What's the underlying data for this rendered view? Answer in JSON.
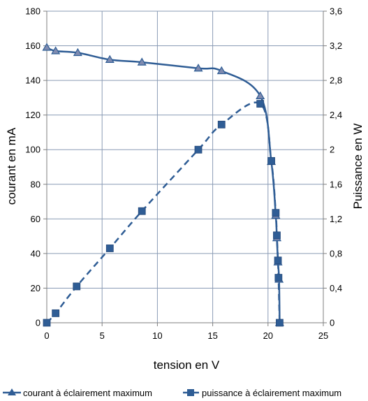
{
  "chart_data": {
    "type": "scatter",
    "xlabel": "tension en V",
    "ylabel": "courant en mA",
    "y2label": "Puissance en W",
    "xlim": [
      0,
      25
    ],
    "ylim": [
      0,
      180
    ],
    "y2lim": [
      0,
      3.6
    ],
    "xticks": [
      0,
      5,
      10,
      15,
      20,
      25
    ],
    "yticks": [
      0,
      20,
      40,
      60,
      80,
      100,
      120,
      140,
      160,
      180
    ],
    "y2ticks": [
      "0",
      "0,4",
      "0,8",
      "1,2",
      "1,6",
      "2",
      "2,4",
      "2,8",
      "3,2",
      "3,6"
    ],
    "grid": true,
    "legend_position": "bottom",
    "series": [
      {
        "name": "courant à éclairement maximum",
        "axis": "left",
        "marker": "triangle",
        "line": "solid",
        "color": "#2f5d95",
        "points": [
          {
            "x": 0,
            "y": 159
          },
          {
            "x": 0.8,
            "y": 157
          },
          {
            "x": 2.8,
            "y": 156
          },
          {
            "x": 5.7,
            "y": 152
          },
          {
            "x": 8.6,
            "y": 150.5
          },
          {
            "x": 13.7,
            "y": 147
          },
          {
            "x": 15.8,
            "y": 145.5
          },
          {
            "x": 19.3,
            "y": 131
          },
          {
            "x": 20.3,
            "y": 93
          },
          {
            "x": 20.7,
            "y": 62
          },
          {
            "x": 20.8,
            "y": 49
          },
          {
            "x": 20.9,
            "y": 35
          },
          {
            "x": 21.0,
            "y": 25
          },
          {
            "x": 21.05,
            "y": 0
          }
        ]
      },
      {
        "name": "puissance à éclairement maximum",
        "axis": "right",
        "marker": "square",
        "line": "dashed",
        "color": "#2f5d95",
        "points": [
          {
            "x": 0,
            "y": 0
          },
          {
            "x": 0.8,
            "y": 0.11
          },
          {
            "x": 2.7,
            "y": 0.42
          },
          {
            "x": 5.7,
            "y": 0.86
          },
          {
            "x": 8.6,
            "y": 1.29
          },
          {
            "x": 13.7,
            "y": 2.0
          },
          {
            "x": 15.8,
            "y": 2.29
          },
          {
            "x": 19.3,
            "y": 2.53
          },
          {
            "x": 20.3,
            "y": 1.87
          },
          {
            "x": 20.7,
            "y": 1.27
          },
          {
            "x": 20.8,
            "y": 1.01
          },
          {
            "x": 20.9,
            "y": 0.72
          },
          {
            "x": 20.95,
            "y": 0.52
          },
          {
            "x": 21.05,
            "y": 0
          }
        ]
      }
    ]
  }
}
